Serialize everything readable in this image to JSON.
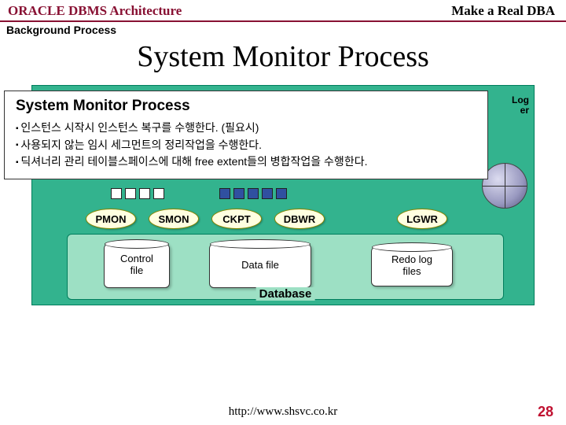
{
  "header": {
    "left": "ORACLE DBMS Architecture",
    "right": "Make a Real DBA",
    "left_color": "#881133",
    "underline_color": "#881133"
  },
  "subtitle": "Background Process",
  "main_title": "System Monitor Process",
  "callout": {
    "title": "System Monitor Process",
    "bullets": [
      "인스턴스 시작시 인스턴스 복구를 수행한다. (필요시)",
      "사용되지 않는 임시 세그먼트의 정리작업을 수행한다.",
      "딕셔너리 관리 테이블스페이스에 대해 free extent들의 병합작업을 수행한다."
    ],
    "bullet_fontsize": 14,
    "title_fontsize": 19
  },
  "log_tag": {
    "line1": "Log",
    "line2": "er"
  },
  "diagram": {
    "bg_color": "#33b38e",
    "inner_bg_color": "#9de0c4",
    "border_color": "#007d5c",
    "processes": [
      "PMON",
      "SMON",
      "CKPT",
      "DBWR",
      "LGWR"
    ],
    "proc_bg": "#ffffe0",
    "proc_border": "#888800",
    "blocks": {
      "white_color": "#ffffff",
      "blue_color": "#3050a0",
      "group1_whites": 4,
      "group2_blues": 5
    },
    "cylinders": {
      "control": "Control\nfile",
      "data": "Data file",
      "redo": "Redo log\nfiles"
    },
    "db_label": "Database",
    "wheel": {
      "gradient_light": "#dcdcf0",
      "gradient_mid": "#9999c0",
      "gradient_dark": "#555580"
    }
  },
  "footer": {
    "url": "http://www.shsvc.co.kr",
    "page": "28",
    "page_color": "#c01030"
  }
}
